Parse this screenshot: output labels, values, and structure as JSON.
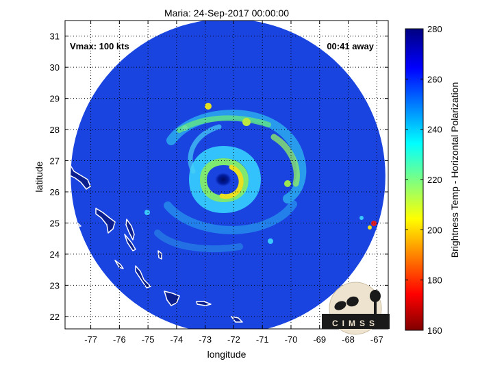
{
  "title": "Maria: 24-Sep-2017 00:00:00",
  "vmax_label": "Vmax: 100 kts",
  "time_away_label": "00:41 away",
  "logo_text": "CIMSS",
  "map": {
    "xlabel": "longitude",
    "ylabel": "latitude",
    "xlim": [
      -77.9,
      -66.6
    ],
    "ylim": [
      21.6,
      31.5
    ],
    "xticks": [
      -77,
      -76,
      -75,
      -74,
      -73,
      -72,
      -71,
      -70,
      -69,
      -68,
      -67
    ],
    "yticks": [
      22,
      23,
      24,
      25,
      26,
      27,
      28,
      29,
      30,
      31
    ],
    "grid": true,
    "swath_center": [
      -72.2,
      26.5
    ],
    "swath_radius_deg": 5.5,
    "eye_center": [
      -72.15,
      26.55
    ],
    "colors": {
      "background_swath": "#1a44e0",
      "band_cyan": "#22d4ff",
      "band_green": "#7ce86a",
      "band_yellow": "#e6e020",
      "eye": "#001080",
      "land": "#0b1f8f",
      "coast": "#ffffff"
    }
  },
  "colorbar": {
    "label": "Brightness Temp - Horizontal Polarization",
    "min": 160,
    "max": 280,
    "ticks": [
      160,
      180,
      200,
      220,
      240,
      260,
      280
    ],
    "stops": [
      "#800000",
      "#ff0000",
      "#ffff00",
      "#00ffff",
      "#0000ff",
      "#000080"
    ]
  }
}
